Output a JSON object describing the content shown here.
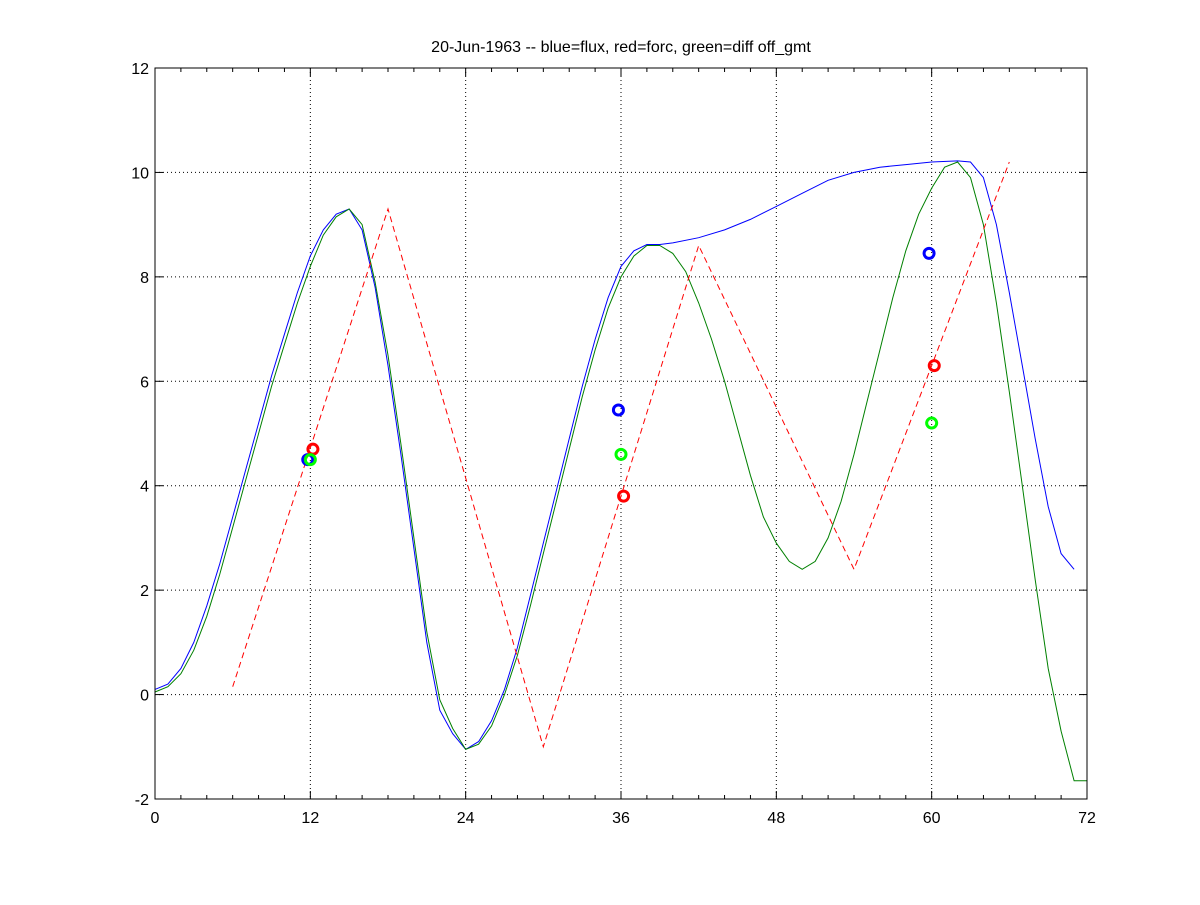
{
  "chart_data": {
    "type": "line",
    "title": "20-Jun-1963 -- blue=flux, red=forc, green=diff off_gmt",
    "xlabel": "",
    "ylabel": "",
    "xlim": [
      0,
      72
    ],
    "ylim": [
      -2,
      12
    ],
    "xticks": [
      0,
      12,
      24,
      36,
      48,
      60,
      72
    ],
    "xtick_labels": [
      "0",
      "12",
      "24",
      "36",
      "48",
      "60",
      "72"
    ],
    "yticks": [
      -2,
      0,
      2,
      4,
      6,
      8,
      10,
      12
    ],
    "ytick_labels": [
      "-2",
      "0",
      "2",
      "4",
      "6",
      "8",
      "10",
      "12"
    ],
    "x_minor_step": 2,
    "grid": true,
    "series": [
      {
        "name": "flux",
        "color": "#0000ff",
        "style": "solid",
        "x": [
          0,
          1,
          2,
          3,
          4,
          5,
          6,
          7,
          8,
          9,
          10,
          11,
          12,
          13,
          14,
          15,
          16,
          17,
          18,
          19,
          20,
          21,
          22,
          23,
          24,
          25,
          26,
          27,
          28,
          29,
          30,
          31,
          32,
          33,
          34,
          35,
          36,
          37,
          38,
          39,
          40,
          42,
          44,
          46,
          48,
          50,
          52,
          54,
          56,
          58,
          60,
          62,
          63,
          64,
          65,
          66,
          67,
          68,
          69,
          70,
          71
        ],
        "y": [
          0.1,
          0.2,
          0.5,
          1.0,
          1.7,
          2.5,
          3.4,
          4.3,
          5.2,
          6.1,
          6.9,
          7.7,
          8.4,
          8.9,
          9.2,
          9.3,
          8.9,
          7.8,
          6.3,
          4.6,
          2.8,
          1.0,
          -0.3,
          -0.75,
          -1.05,
          -0.9,
          -0.5,
          0.1,
          0.9,
          1.9,
          2.9,
          3.9,
          4.9,
          5.9,
          6.8,
          7.6,
          8.2,
          8.5,
          8.62,
          8.62,
          8.65,
          8.75,
          8.9,
          9.1,
          9.35,
          9.6,
          9.85,
          10.0,
          10.1,
          10.15,
          10.2,
          10.22,
          10.2,
          9.9,
          9.0,
          7.7,
          6.3,
          4.9,
          3.6,
          2.7,
          2.4
        ]
      },
      {
        "name": "diff",
        "color": "#008000",
        "style": "solid",
        "x": [
          0,
          1,
          2,
          3,
          4,
          5,
          6,
          7,
          8,
          9,
          10,
          11,
          12,
          13,
          14,
          15,
          16,
          17,
          18,
          19,
          20,
          21,
          22,
          23,
          24,
          25,
          26,
          27,
          28,
          29,
          30,
          31,
          32,
          33,
          34,
          35,
          36,
          37,
          38,
          39,
          40,
          41,
          42,
          43,
          44,
          45,
          46,
          47,
          48,
          49,
          50,
          51,
          52,
          53,
          54,
          55,
          56,
          57,
          58,
          59,
          60,
          61,
          62,
          63,
          64,
          65,
          66,
          67,
          68,
          69,
          70,
          71,
          72
        ],
        "y": [
          0.05,
          0.15,
          0.4,
          0.85,
          1.5,
          2.3,
          3.2,
          4.1,
          5.0,
          5.9,
          6.7,
          7.5,
          8.2,
          8.8,
          9.15,
          9.3,
          9.0,
          7.9,
          6.5,
          4.8,
          3.0,
          1.2,
          -0.1,
          -0.65,
          -1.05,
          -0.95,
          -0.6,
          0.0,
          0.75,
          1.7,
          2.7,
          3.7,
          4.7,
          5.7,
          6.6,
          7.4,
          8.0,
          8.4,
          8.6,
          8.6,
          8.45,
          8.1,
          7.5,
          6.8,
          6.0,
          5.1,
          4.2,
          3.4,
          2.9,
          2.55,
          2.4,
          2.55,
          3.0,
          3.7,
          4.6,
          5.6,
          6.6,
          7.6,
          8.5,
          9.2,
          9.7,
          10.1,
          10.2,
          9.9,
          9.0,
          7.5,
          5.8,
          4.0,
          2.2,
          0.5,
          -0.7,
          -1.65,
          -1.65
        ]
      },
      {
        "name": "forc",
        "color": "#ff0000",
        "style": "dashed",
        "x": [
          6,
          18,
          30,
          42,
          54,
          66
        ],
        "y": [
          0.15,
          9.3,
          -1.0,
          8.6,
          2.4,
          10.2
        ]
      }
    ],
    "markers": [
      {
        "name": "flux",
        "color": "#0000ff",
        "x": [
          11.8,
          35.8,
          59.8
        ],
        "y": [
          4.5,
          5.45,
          8.45
        ]
      },
      {
        "name": "forc",
        "color": "#ff0000",
        "x": [
          12.2,
          36.2,
          60.2
        ],
        "y": [
          4.7,
          3.8,
          6.3
        ]
      },
      {
        "name": "diff",
        "color": "#00ff00",
        "x": [
          12.0,
          36.0,
          60.0
        ],
        "y": [
          4.5,
          4.6,
          5.2
        ]
      }
    ]
  }
}
